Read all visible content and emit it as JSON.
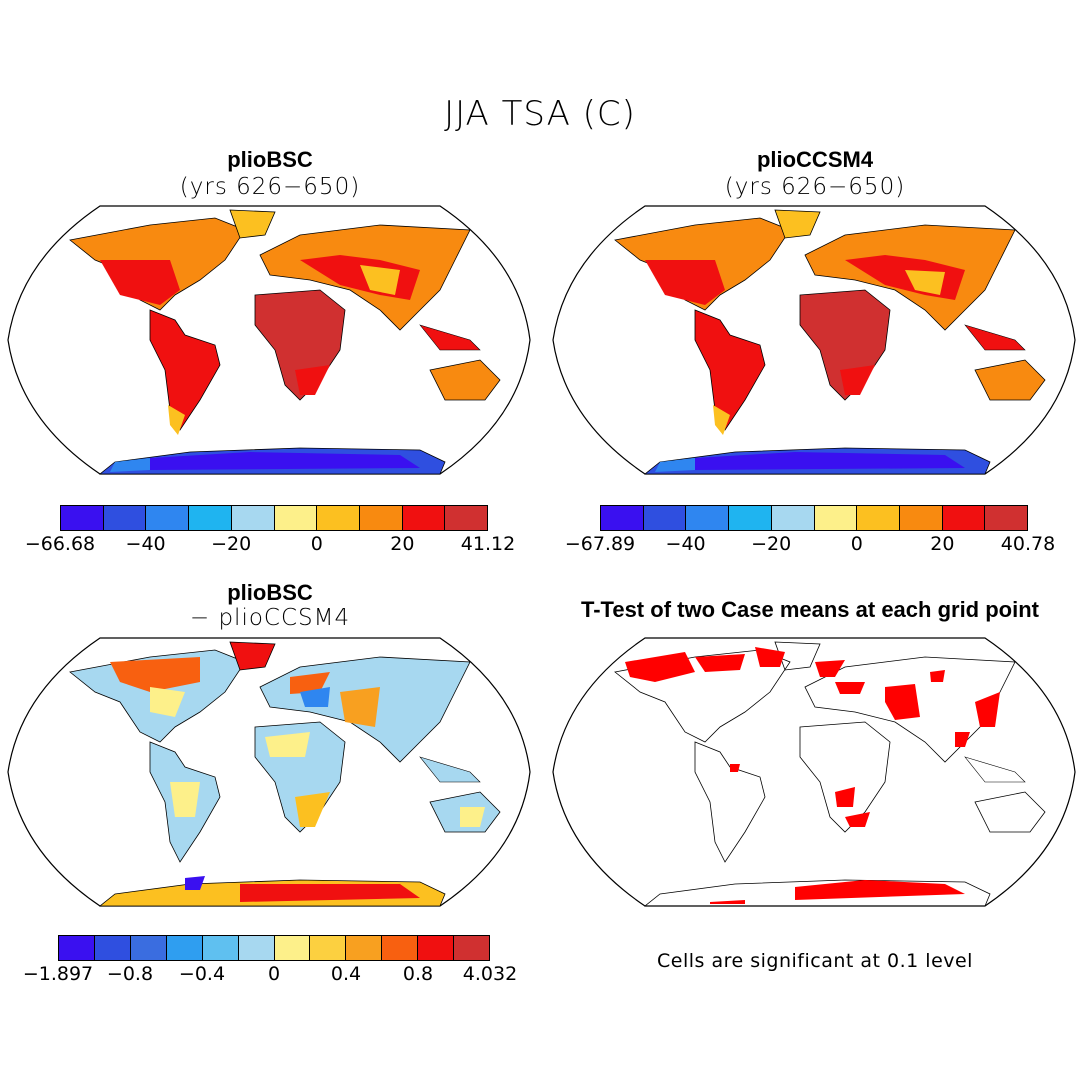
{
  "main_title": "JJA TSA (C)",
  "panels": [
    {
      "title": "plioBSC",
      "subtitle": "(yrs 626−650)",
      "colorbar": {
        "colors": [
          "#3a10f0",
          "#2f4fe0",
          "#2f86f0",
          "#1fb4f0",
          "#a7d8f0",
          "#fdf08a",
          "#fcc020",
          "#f88a10",
          "#f01010",
          "#d03030"
        ],
        "tick_labels": [
          "−66.68",
          "−40",
          "−20",
          "0",
          "20",
          "41.12"
        ]
      }
    },
    {
      "title": "plioCCSM4",
      "subtitle": "(yrs 626−650)",
      "colorbar": {
        "colors": [
          "#3a10f0",
          "#2f4fe0",
          "#2f86f0",
          "#1fb4f0",
          "#a7d8f0",
          "#fdf08a",
          "#fcc020",
          "#f88a10",
          "#f01010",
          "#d03030"
        ],
        "tick_labels": [
          "−67.89",
          "−40",
          "−20",
          "0",
          "20",
          "40.78"
        ]
      }
    },
    {
      "title": "plioBSC",
      "subtitle": "− plioCCSM4",
      "colorbar": {
        "colors": [
          "#3a10f0",
          "#2f4fe0",
          "#3a6de0",
          "#2f9ef0",
          "#5fc0f0",
          "#a7d8f0",
          "#fdf08a",
          "#fcd040",
          "#f8a020",
          "#f86010",
          "#f01010",
          "#d03030"
        ],
        "tick_labels": [
          "−1.897",
          "−0.8",
          "−0.4",
          "0",
          "0.4",
          "0.8",
          "4.032"
        ]
      }
    },
    {
      "title": "T-Test of two Case means at each grid point",
      "note": "Cells are significant at 0.1 level"
    }
  ]
}
